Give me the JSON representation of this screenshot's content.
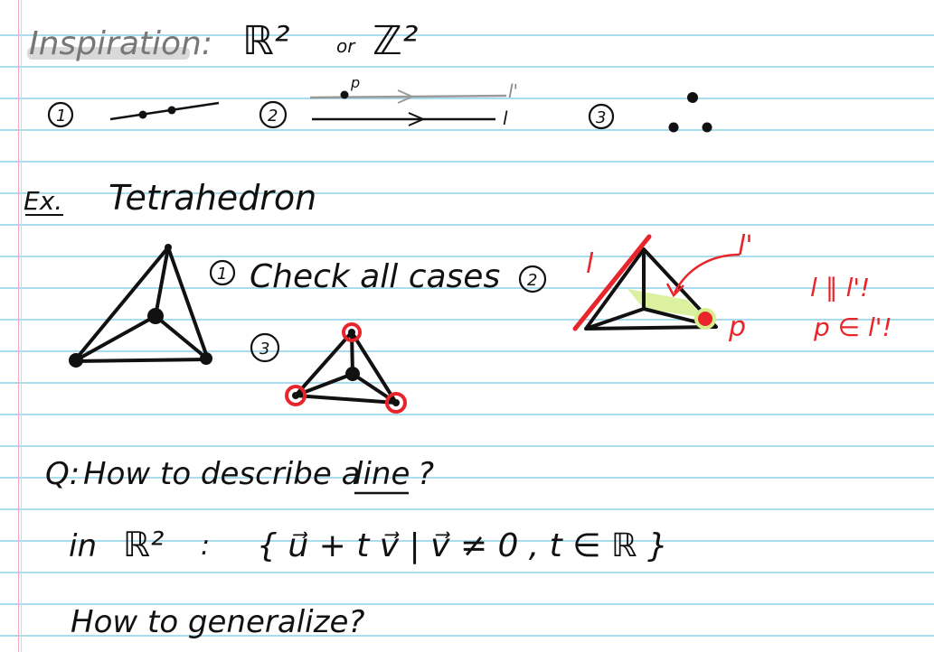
{
  "page": {
    "heading": "Inspiration:",
    "sets": {
      "r2": "ℝ²",
      "or": "or",
      "z2": "ℤ²"
    },
    "cases_row": {
      "num1": "1",
      "num2": "2",
      "num3": "3",
      "point_label_p": "p",
      "line_label_l_prime": "l'",
      "line_label_l": "l"
    },
    "example": {
      "label": "Ex.",
      "title": "Tetrahedron"
    },
    "check": {
      "num1": "1",
      "text": "Check all cases",
      "num2": "2",
      "num3": "3"
    },
    "red_notes": {
      "l": "l",
      "l_prime": "l'",
      "p": "p",
      "parallel": "l ∥ l'!",
      "p_in": "p ∈ l'!"
    },
    "question": {
      "prefix": "Q:",
      "text": "How to describe a",
      "word": "line",
      "mark": "?"
    },
    "set_notation": {
      "prefix": "in",
      "space": "ℝ²",
      "colon": ":",
      "expr": "{ u⃗ + t v⃗  |  v⃗ ≠ 0 , t ∈ ℝ }"
    },
    "generalize": "How to generalize?"
  },
  "colors": {
    "ink": "#111111",
    "red": "#e8252b",
    "highlight": "#d6ef8e",
    "rule": "#a9dcec",
    "margin": "#f2a6c8"
  }
}
